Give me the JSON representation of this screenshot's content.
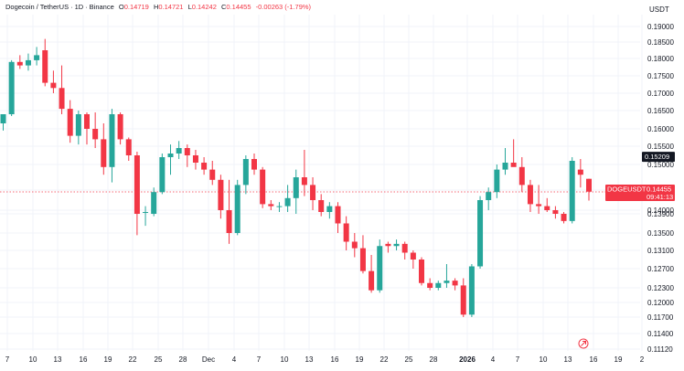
{
  "header": {
    "symbol": "Dogecoin / TetherUS",
    "interval": "1D",
    "exchange": "Binance",
    "open_label": "O",
    "open": "0.14719",
    "high_label": "H",
    "high": "0.14721",
    "low_label": "L",
    "low": "0.14242",
    "close_label": "C",
    "close": "0.14455",
    "change": "-0.00263 (-1.79%)"
  },
  "unit": "USDT",
  "price_tags": {
    "high_marker": "0.15209",
    "symbol_label": "DOGEUSDT",
    "last_price": "0.14455",
    "countdown": "09:41:13"
  },
  "colors": {
    "up": "#26a69a",
    "down": "#f23645",
    "grid": "#f0f3fa",
    "axis_text": "#131722"
  },
  "chart_data": {
    "type": "candlestick",
    "y_axis": {
      "ticks": [
        "0.19000",
        "0.18500",
        "0.18000",
        "0.17500",
        "0.17000",
        "0.16500",
        "0.16000",
        "0.15500",
        "0.15000",
        "0.14500",
        "0.14000",
        "0.13900",
        "0.13500",
        "0.13100",
        "0.12700",
        "0.12300",
        "0.12000",
        "0.11700",
        "0.11400",
        "0.11120"
      ],
      "range": [
        0.111,
        0.193
      ]
    },
    "x_axis": {
      "labels": [
        "7",
        "10",
        "13",
        "16",
        "19",
        "22",
        "25",
        "28",
        "Dec",
        "4",
        "7",
        "10",
        "13",
        "16",
        "19",
        "22",
        "25",
        "28",
        "2026",
        "4",
        "7",
        "10",
        "13",
        "16",
        "19",
        "2"
      ],
      "bold_labels": [
        "2026"
      ]
    },
    "candles": [
      {
        "o": 0.1615,
        "h": 0.164,
        "l": 0.1595,
        "c": 0.164
      },
      {
        "o": 0.164,
        "h": 0.1795,
        "l": 0.1635,
        "c": 0.179
      },
      {
        "o": 0.179,
        "h": 0.181,
        "l": 0.177,
        "c": 0.178
      },
      {
        "o": 0.178,
        "h": 0.1815,
        "l": 0.1765,
        "c": 0.1795
      },
      {
        "o": 0.1795,
        "h": 0.1835,
        "l": 0.178,
        "c": 0.181
      },
      {
        "o": 0.1825,
        "h": 0.186,
        "l": 0.172,
        "c": 0.173
      },
      {
        "o": 0.173,
        "h": 0.1765,
        "l": 0.17,
        "c": 0.1715
      },
      {
        "o": 0.1715,
        "h": 0.178,
        "l": 0.164,
        "c": 0.1655
      },
      {
        "o": 0.1655,
        "h": 0.168,
        "l": 0.156,
        "c": 0.158
      },
      {
        "o": 0.158,
        "h": 0.165,
        "l": 0.1555,
        "c": 0.164
      },
      {
        "o": 0.164,
        "h": 0.1645,
        "l": 0.1555,
        "c": 0.16
      },
      {
        "o": 0.16,
        "h": 0.1645,
        "l": 0.1545,
        "c": 0.157
      },
      {
        "o": 0.157,
        "h": 0.1615,
        "l": 0.148,
        "c": 0.1495
      },
      {
        "o": 0.1495,
        "h": 0.1655,
        "l": 0.1465,
        "c": 0.164
      },
      {
        "o": 0.164,
        "h": 0.1645,
        "l": 0.1555,
        "c": 0.157
      },
      {
        "o": 0.157,
        "h": 0.1575,
        "l": 0.151,
        "c": 0.1525
      },
      {
        "o": 0.1525,
        "h": 0.1535,
        "l": 0.1345,
        "c": 0.139
      },
      {
        "o": 0.1395,
        "h": 0.141,
        "l": 0.1365,
        "c": 0.1395
      },
      {
        "o": 0.139,
        "h": 0.1455,
        "l": 0.1385,
        "c": 0.1445
      },
      {
        "o": 0.1445,
        "h": 0.153,
        "l": 0.144,
        "c": 0.152
      },
      {
        "o": 0.152,
        "h": 0.1555,
        "l": 0.148,
        "c": 0.153
      },
      {
        "o": 0.153,
        "h": 0.1565,
        "l": 0.1515,
        "c": 0.1545
      },
      {
        "o": 0.1545,
        "h": 0.1555,
        "l": 0.1495,
        "c": 0.1525
      },
      {
        "o": 0.1525,
        "h": 0.154,
        "l": 0.149,
        "c": 0.1505
      },
      {
        "o": 0.1505,
        "h": 0.152,
        "l": 0.148,
        "c": 0.149
      },
      {
        "o": 0.149,
        "h": 0.151,
        "l": 0.146,
        "c": 0.147
      },
      {
        "o": 0.147,
        "h": 0.148,
        "l": 0.138,
        "c": 0.14
      },
      {
        "o": 0.14,
        "h": 0.147,
        "l": 0.1325,
        "c": 0.135
      },
      {
        "o": 0.135,
        "h": 0.147,
        "l": 0.1345,
        "c": 0.146
      },
      {
        "o": 0.146,
        "h": 0.1525,
        "l": 0.144,
        "c": 0.1515
      },
      {
        "o": 0.1515,
        "h": 0.153,
        "l": 0.148,
        "c": 0.149
      },
      {
        "o": 0.149,
        "h": 0.1495,
        "l": 0.1405,
        "c": 0.1415
      },
      {
        "o": 0.1415,
        "h": 0.1425,
        "l": 0.14,
        "c": 0.141
      },
      {
        "o": 0.141,
        "h": 0.142,
        "l": 0.1395,
        "c": 0.141
      },
      {
        "o": 0.141,
        "h": 0.146,
        "l": 0.1395,
        "c": 0.143
      },
      {
        "o": 0.143,
        "h": 0.149,
        "l": 0.139,
        "c": 0.1475
      },
      {
        "o": 0.1475,
        "h": 0.154,
        "l": 0.1435,
        "c": 0.146
      },
      {
        "o": 0.146,
        "h": 0.1475,
        "l": 0.14,
        "c": 0.1425
      },
      {
        "o": 0.1425,
        "h": 0.144,
        "l": 0.1385,
        "c": 0.1395
      },
      {
        "o": 0.1395,
        "h": 0.142,
        "l": 0.138,
        "c": 0.141
      },
      {
        "o": 0.141,
        "h": 0.142,
        "l": 0.135,
        "c": 0.137
      },
      {
        "o": 0.137,
        "h": 0.1385,
        "l": 0.131,
        "c": 0.133
      },
      {
        "o": 0.133,
        "h": 0.135,
        "l": 0.1295,
        "c": 0.1315
      },
      {
        "o": 0.1315,
        "h": 0.1345,
        "l": 0.126,
        "c": 0.1265
      },
      {
        "o": 0.1265,
        "h": 0.13,
        "l": 0.122,
        "c": 0.1225
      },
      {
        "o": 0.1225,
        "h": 0.1335,
        "l": 0.122,
        "c": 0.132
      },
      {
        "o": 0.1325,
        "h": 0.133,
        "l": 0.1305,
        "c": 0.132
      },
      {
        "o": 0.132,
        "h": 0.1335,
        "l": 0.131,
        "c": 0.1325
      },
      {
        "o": 0.1325,
        "h": 0.133,
        "l": 0.129,
        "c": 0.1305
      },
      {
        "o": 0.1305,
        "h": 0.131,
        "l": 0.127,
        "c": 0.129
      },
      {
        "o": 0.129,
        "h": 0.1295,
        "l": 0.1235,
        "c": 0.124
      },
      {
        "o": 0.124,
        "h": 0.125,
        "l": 0.1225,
        "c": 0.123
      },
      {
        "o": 0.123,
        "h": 0.1245,
        "l": 0.1225,
        "c": 0.124
      },
      {
        "o": 0.124,
        "h": 0.128,
        "l": 0.123,
        "c": 0.1245
      },
      {
        "o": 0.1245,
        "h": 0.125,
        "l": 0.1225,
        "c": 0.1235
      },
      {
        "o": 0.1235,
        "h": 0.125,
        "l": 0.117,
        "c": 0.1175
      },
      {
        "o": 0.1175,
        "h": 0.128,
        "l": 0.117,
        "c": 0.1275
      },
      {
        "o": 0.1275,
        "h": 0.1435,
        "l": 0.127,
        "c": 0.1425
      },
      {
        "o": 0.1425,
        "h": 0.1455,
        "l": 0.14,
        "c": 0.1445
      },
      {
        "o": 0.1445,
        "h": 0.15,
        "l": 0.143,
        "c": 0.149
      },
      {
        "o": 0.149,
        "h": 0.1545,
        "l": 0.148,
        "c": 0.1505
      },
      {
        "o": 0.1505,
        "h": 0.157,
        "l": 0.15,
        "c": 0.1495
      },
      {
        "o": 0.1495,
        "h": 0.152,
        "l": 0.1445,
        "c": 0.146
      },
      {
        "o": 0.146,
        "h": 0.147,
        "l": 0.1395,
        "c": 0.1415
      },
      {
        "o": 0.1415,
        "h": 0.146,
        "l": 0.139,
        "c": 0.141
      },
      {
        "o": 0.141,
        "h": 0.143,
        "l": 0.1395,
        "c": 0.14
      },
      {
        "o": 0.14,
        "h": 0.141,
        "l": 0.138,
        "c": 0.139
      },
      {
        "o": 0.139,
        "h": 0.1395,
        "l": 0.137,
        "c": 0.1375
      },
      {
        "o": 0.1375,
        "h": 0.152,
        "l": 0.137,
        "c": 0.151
      },
      {
        "o": 0.149,
        "h": 0.1515,
        "l": 0.1455,
        "c": 0.148
      },
      {
        "o": 0.1472,
        "h": 0.1472,
        "l": 0.1424,
        "c": 0.1446
      }
    ],
    "last_price_line": 0.14455
  }
}
